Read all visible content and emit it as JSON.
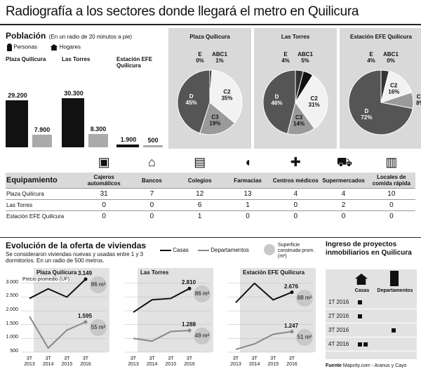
{
  "title": "Radiografía a los sectores donde llegará el metro en Quilicura",
  "poblacion": {
    "heading": "Población",
    "note": "(En un radio de 20 minutos a pie)",
    "legend": {
      "personas": "Personas",
      "hogares": "Hogares"
    },
    "sectors": [
      {
        "name": "Plaza Quilicura",
        "personas": "29.200",
        "hogares": "7.900"
      },
      {
        "name": "Las Torres",
        "personas": "30.300",
        "hogares": "8.300"
      },
      {
        "name": "Estación EFE Quilicura",
        "personas": "1.900",
        "hogares": "500"
      }
    ]
  },
  "equipamiento": {
    "header": "Equipamiento",
    "columns": [
      "Cajeros automáticos",
      "Bancos",
      "Colegios",
      "Farmacias",
      "Centros médicos",
      "Supermercados",
      "Locales de comida rápida"
    ],
    "rows": [
      {
        "label": "Plaza Quilicura",
        "values": [
          "31",
          "7",
          "12",
          "13",
          "4",
          "4",
          "10"
        ]
      },
      {
        "label": "Las Torres",
        "values": [
          "0",
          "0",
          "6",
          "1",
          "0",
          "2",
          "0"
        ]
      },
      {
        "label": "Estación EFE Quilicura",
        "values": [
          "0",
          "0",
          "1",
          "0",
          "0",
          "0",
          "0"
        ]
      }
    ]
  },
  "evolucion": {
    "heading": "Evolución de la oferta de viviendas",
    "subtitle": "Se consideraron viviendas nuevas y usadas entre 1 y 3 dormitorios. En un radio de 500 metros.",
    "legend": {
      "casas": "Casas",
      "deptos": "Departamentos",
      "superficie": "Superficie construida prom. (m²)"
    },
    "precio_label": "Precio promedio (UF)",
    "x_labels": [
      [
        "3T",
        "2013"
      ],
      [
        "3T",
        "2014"
      ],
      [
        "3T",
        "2015"
      ],
      [
        "3T",
        "2016"
      ]
    ],
    "y_ticks": [
      "3.000",
      "2.500",
      "2.000",
      "1.500",
      "1.000",
      "500"
    ]
  },
  "ingreso": {
    "heading": "Ingreso de proyectos inmobiliarios en Quilicura",
    "col_casas": "Casas",
    "col_deptos": "Departamentos",
    "rows": [
      {
        "label": "1T 2016",
        "casas": 1,
        "deptos": 0
      },
      {
        "label": "2T 2016",
        "casas": 1,
        "deptos": 0
      },
      {
        "label": "3T 2016",
        "casas": 0,
        "deptos": 1
      },
      {
        "label": "4T 2016",
        "casas": 2,
        "deptos": 0
      }
    ]
  },
  "footer": {
    "fuente_label": "Fuente",
    "fuente_text": "Mapcity.com - Aranus y Cayo"
  },
  "chart_data": [
    {
      "type": "pie",
      "title": "Plaza Quilicura",
      "slices": [
        {
          "label": "E",
          "value": 0
        },
        {
          "label": "ABC1",
          "value": 1
        },
        {
          "label": "C2",
          "value": 35
        },
        {
          "label": "C3",
          "value": 19
        },
        {
          "label": "D",
          "value": 45
        }
      ]
    },
    {
      "type": "pie",
      "title": "Las Torres",
      "slices": [
        {
          "label": "E",
          "value": 4
        },
        {
          "label": "ABC1",
          "value": 5
        },
        {
          "label": "C2",
          "value": 31
        },
        {
          "label": "C3",
          "value": 14
        },
        {
          "label": "D",
          "value": 46
        }
      ]
    },
    {
      "type": "pie",
      "title": "Estación EFE Quilicura",
      "slices": [
        {
          "label": "E",
          "value": 4
        },
        {
          "label": "ABC1",
          "value": 0
        },
        {
          "label": "C2",
          "value": 16
        },
        {
          "label": "C3",
          "value": 8
        },
        {
          "label": "D",
          "value": 72
        }
      ]
    },
    {
      "type": "line",
      "title": "Plaza Quilicura",
      "ylim": [
        500,
        3200
      ],
      "series": [
        {
          "name": "Casas",
          "values": [
            2450,
            2800,
            2500,
            3149
          ],
          "end_label": "3.149",
          "m2": "86"
        },
        {
          "name": "Departamentos",
          "values": [
            1800,
            650,
            1300,
            1595
          ],
          "end_label": "1.595",
          "m2": "55"
        }
      ]
    },
    {
      "type": "line",
      "title": "Las Torres",
      "ylim": [
        500,
        3200
      ],
      "series": [
        {
          "name": "Casas",
          "values": [
            1950,
            2400,
            2450,
            2810
          ],
          "end_label": "2.810",
          "m2": "86"
        },
        {
          "name": "Departamentos",
          "values": [
            1000,
            900,
            1250,
            1288
          ],
          "end_label": "1.288",
          "m2": "49"
        }
      ]
    },
    {
      "type": "line",
      "title": "Estación EFE Quilicura",
      "ylim": [
        500,
        3200
      ],
      "series": [
        {
          "name": "Casas",
          "values": [
            2300,
            3000,
            2400,
            2676
          ],
          "end_label": "2.676",
          "m2": "88"
        },
        {
          "name": "Departamentos",
          "values": [
            600,
            800,
            1150,
            1247
          ],
          "end_label": "1.247",
          "m2": "51"
        }
      ]
    }
  ]
}
